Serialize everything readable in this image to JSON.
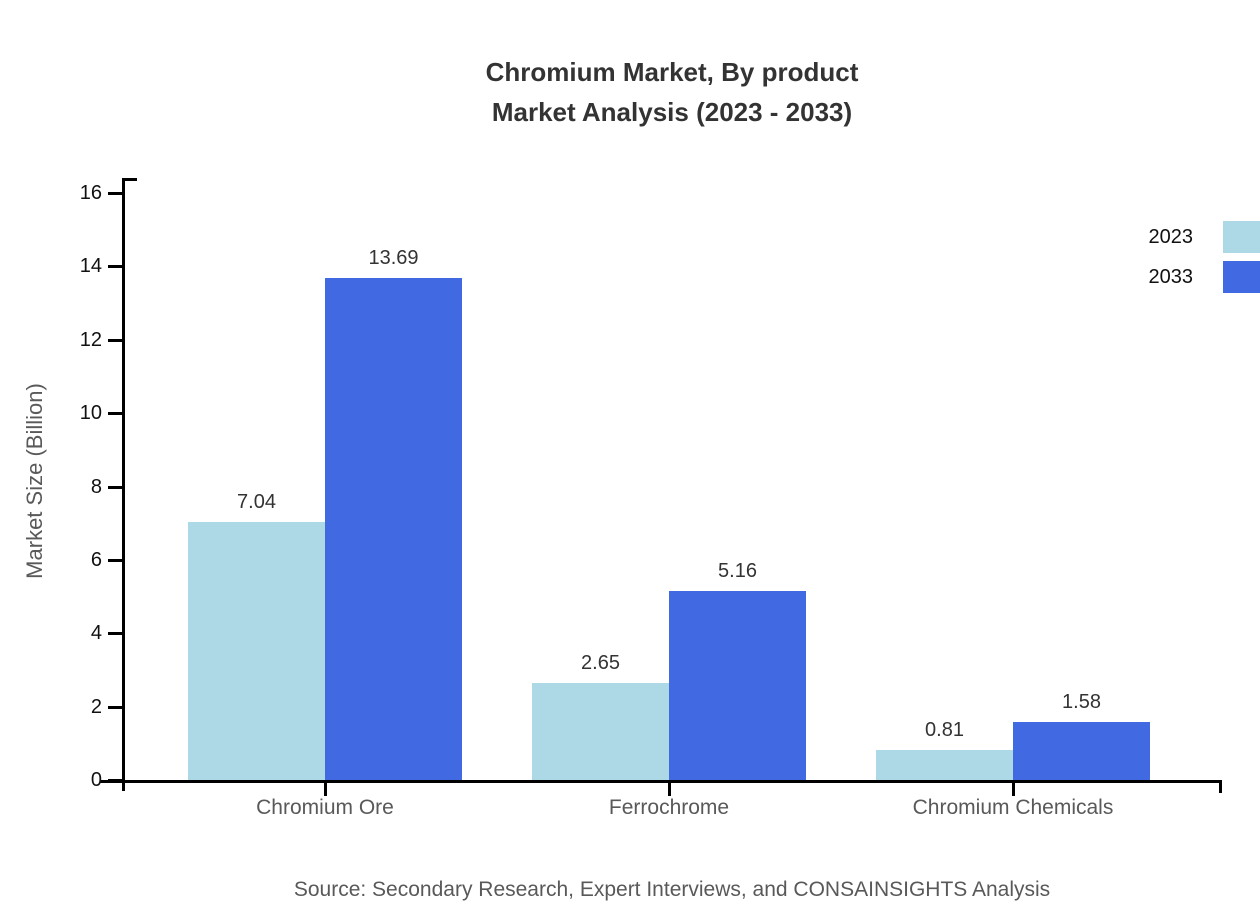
{
  "title": {
    "line1": "Chromium Market, By product",
    "line2": "Market Analysis (2023 - 2033)"
  },
  "source_note": "Source: Secondary Research, Expert Interviews, and CONSAINSIGHTS Analysis",
  "chart_data": {
    "type": "bar",
    "title": "Chromium Market, By product Market Analysis (2023 - 2033)",
    "categories": [
      "Chromium Ore",
      "Ferrochrome",
      "Chromium Chemicals"
    ],
    "series": [
      {
        "name": "2023",
        "color": "#ADD8E6",
        "values": [
          7.04,
          2.65,
          0.81
        ]
      },
      {
        "name": "2033",
        "color": "#4169E1",
        "values": [
          13.69,
          5.16,
          1.58
        ]
      }
    ],
    "value_labels": [
      "7.04",
      "13.69",
      "2.65",
      "5.16",
      "0.81",
      "1.58"
    ],
    "xlabel": "",
    "ylabel": "Market Size (Billion)",
    "ylim": [
      0,
      16
    ],
    "yticks": [
      0,
      2,
      4,
      6,
      8,
      10,
      12,
      14,
      16
    ],
    "grid": false,
    "legend_position": "top-right-edge",
    "axis_color": "#000000",
    "text_colors": {
      "title": "#333333",
      "tick_labels": "#111111",
      "axis_labels": "#595959",
      "value_labels": "#333333"
    }
  }
}
